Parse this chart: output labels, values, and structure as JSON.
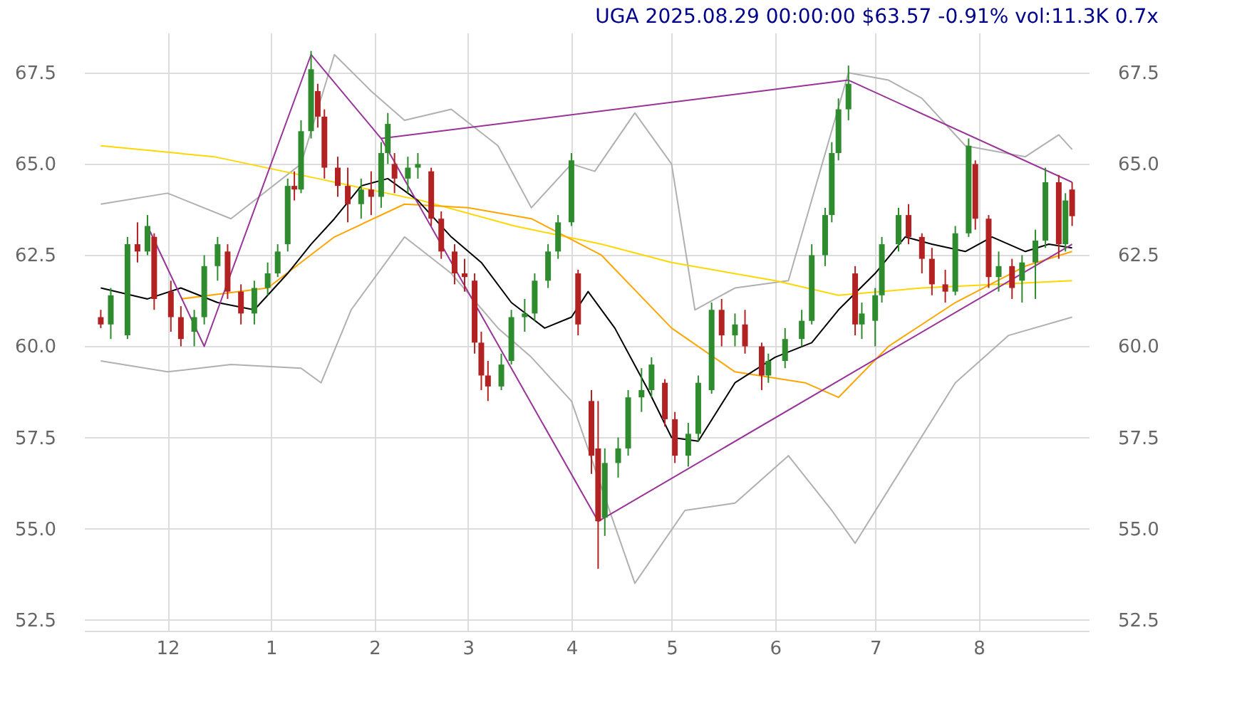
{
  "chart_data": {
    "type": "candlestick",
    "title": "UGA 2025.08.29 00:00:00 $63.57 -0.91% vol:11.3K 0.7x",
    "x": [
      "2024-11-11",
      "2024-11-14",
      "2024-11-19",
      "2024-11-22",
      "2024-11-25",
      "2024-11-27",
      "2024-12-02",
      "2024-12-05",
      "2024-12-09",
      "2024-12-12",
      "2024-12-16",
      "2024-12-19",
      "2024-12-23",
      "2024-12-27",
      "2024-12-31",
      "2025-01-03",
      "2025-01-06",
      "2025-01-08",
      "2025-01-10",
      "2025-01-13",
      "2025-01-15",
      "2025-01-17",
      "2025-01-21",
      "2025-01-24",
      "2025-01-28",
      "2025-01-31",
      "2025-02-03",
      "2025-02-05",
      "2025-02-07",
      "2025-02-11",
      "2025-02-14",
      "2025-02-18",
      "2025-02-21",
      "2025-02-25",
      "2025-02-28",
      "2025-03-03",
      "2025-03-05",
      "2025-03-07",
      "2025-03-11",
      "2025-03-14",
      "2025-03-18",
      "2025-03-21",
      "2025-03-25",
      "2025-03-28",
      "2025-04-01",
      "2025-04-03",
      "2025-04-07",
      "2025-04-09",
      "2025-04-11",
      "2025-04-15",
      "2025-04-18",
      "2025-04-22",
      "2025-04-25",
      "2025-04-29",
      "2025-05-02",
      "2025-05-06",
      "2025-05-09",
      "2025-05-13",
      "2025-05-16",
      "2025-05-20",
      "2025-05-23",
      "2025-05-28",
      "2025-05-30",
      "2025-06-04",
      "2025-06-09",
      "2025-06-12",
      "2025-06-16",
      "2025-06-18",
      "2025-06-20",
      "2025-06-23",
      "2025-06-25",
      "2025-06-27",
      "2025-07-01",
      "2025-07-03",
      "2025-07-08",
      "2025-07-11",
      "2025-07-15",
      "2025-07-18",
      "2025-07-22",
      "2025-07-25",
      "2025-07-29",
      "2025-07-31",
      "2025-08-04",
      "2025-08-07",
      "2025-08-11",
      "2025-08-14",
      "2025-08-18",
      "2025-08-21",
      "2025-08-25",
      "2025-08-27",
      "2025-08-29"
    ],
    "ohlc": [
      [
        60.8,
        61.0,
        60.5,
        60.6
      ],
      [
        60.6,
        61.6,
        60.2,
        61.4
      ],
      [
        60.3,
        63.0,
        60.2,
        62.8
      ],
      [
        62.8,
        63.4,
        62.3,
        62.6
      ],
      [
        62.6,
        63.6,
        62.5,
        63.3
      ],
      [
        63.0,
        63.1,
        61.0,
        61.3
      ],
      [
        61.5,
        61.8,
        60.4,
        60.8
      ],
      [
        60.8,
        61.1,
        60.0,
        60.2
      ],
      [
        60.4,
        61.0,
        60.0,
        60.8
      ],
      [
        60.8,
        62.5,
        60.6,
        62.2
      ],
      [
        62.2,
        63.0,
        61.8,
        62.8
      ],
      [
        62.6,
        62.8,
        61.3,
        61.5
      ],
      [
        61.5,
        61.7,
        60.6,
        60.9
      ],
      [
        60.9,
        61.8,
        60.6,
        61.6
      ],
      [
        61.6,
        62.3,
        61.4,
        62.0
      ],
      [
        62.0,
        62.8,
        61.9,
        62.6
      ],
      [
        62.8,
        64.6,
        62.6,
        64.4
      ],
      [
        64.4,
        64.8,
        64.0,
        64.3
      ],
      [
        64.3,
        66.2,
        64.2,
        65.9
      ],
      [
        65.9,
        68.1,
        65.7,
        67.6
      ],
      [
        67.0,
        67.2,
        66.0,
        66.3
      ],
      [
        66.3,
        66.5,
        64.6,
        64.9
      ],
      [
        64.9,
        65.2,
        64.1,
        64.4
      ],
      [
        64.4,
        64.9,
        63.4,
        63.9
      ],
      [
        63.9,
        64.6,
        63.5,
        64.3
      ],
      [
        64.3,
        64.8,
        63.6,
        64.1
      ],
      [
        64.1,
        65.6,
        63.8,
        65.3
      ],
      [
        65.3,
        66.4,
        65.0,
        66.1
      ],
      [
        65.0,
        65.3,
        64.2,
        64.6
      ],
      [
        64.6,
        65.2,
        64.2,
        64.9
      ],
      [
        64.9,
        65.3,
        64.6,
        65.0
      ],
      [
        64.8,
        64.9,
        63.3,
        63.5
      ],
      [
        63.5,
        63.7,
        62.4,
        62.6
      ],
      [
        62.6,
        62.8,
        61.7,
        62.0
      ],
      [
        62.0,
        62.4,
        61.5,
        61.9
      ],
      [
        61.8,
        62.0,
        59.8,
        60.1
      ],
      [
        60.1,
        60.4,
        58.8,
        59.2
      ],
      [
        59.2,
        59.6,
        58.5,
        58.9
      ],
      [
        58.9,
        59.8,
        58.8,
        59.5
      ],
      [
        59.6,
        61.0,
        59.5,
        60.8
      ],
      [
        60.8,
        61.3,
        60.4,
        60.9
      ],
      [
        60.9,
        62.0,
        60.7,
        61.8
      ],
      [
        61.8,
        62.8,
        61.6,
        62.6
      ],
      [
        62.6,
        63.6,
        62.4,
        63.4
      ],
      [
        63.4,
        65.3,
        63.3,
        65.1
      ],
      [
        62.0,
        62.1,
        60.3,
        60.6
      ],
      [
        58.5,
        58.8,
        56.5,
        57.0
      ],
      [
        57.2,
        58.5,
        53.9,
        55.2
      ],
      [
        55.3,
        57.2,
        54.8,
        56.8
      ],
      [
        56.8,
        57.5,
        56.4,
        57.2
      ],
      [
        57.2,
        58.8,
        57.0,
        58.6
      ],
      [
        58.6,
        59.4,
        58.2,
        58.8
      ],
      [
        58.8,
        59.7,
        58.6,
        59.5
      ],
      [
        59.0,
        59.1,
        57.8,
        58.0
      ],
      [
        58.0,
        58.2,
        56.8,
        57.0
      ],
      [
        57.0,
        57.9,
        56.7,
        57.6
      ],
      [
        57.6,
        59.2,
        57.4,
        59.0
      ],
      [
        58.8,
        61.2,
        58.7,
        61.0
      ],
      [
        61.0,
        61.3,
        60.0,
        60.3
      ],
      [
        60.3,
        60.9,
        60.0,
        60.6
      ],
      [
        60.6,
        61.0,
        59.8,
        60.0
      ],
      [
        60.0,
        60.1,
        58.8,
        59.2
      ],
      [
        59.2,
        59.8,
        59.0,
        59.6
      ],
      [
        59.6,
        60.5,
        59.4,
        60.2
      ],
      [
        60.2,
        61.0,
        60.0,
        60.7
      ],
      [
        60.7,
        62.8,
        60.6,
        62.5
      ],
      [
        62.5,
        63.8,
        62.2,
        63.6
      ],
      [
        63.6,
        65.6,
        63.4,
        65.3
      ],
      [
        65.3,
        66.8,
        65.1,
        66.5
      ],
      [
        66.5,
        67.7,
        66.2,
        67.2
      ],
      [
        62.0,
        62.2,
        60.3,
        60.6
      ],
      [
        60.6,
        61.2,
        60.2,
        60.9
      ],
      [
        60.7,
        61.6,
        60.0,
        61.4
      ],
      [
        61.4,
        63.0,
        61.2,
        62.8
      ],
      [
        62.8,
        63.8,
        62.6,
        63.6
      ],
      [
        63.6,
        63.9,
        62.8,
        63.0
      ],
      [
        63.0,
        63.1,
        62.0,
        62.4
      ],
      [
        62.4,
        62.7,
        61.4,
        61.7
      ],
      [
        61.7,
        62.1,
        61.2,
        61.5
      ],
      [
        61.5,
        63.3,
        61.4,
        63.1
      ],
      [
        63.1,
        65.7,
        63.0,
        65.5
      ],
      [
        65.0,
        65.1,
        63.2,
        63.5
      ],
      [
        63.5,
        63.6,
        61.6,
        61.9
      ],
      [
        61.9,
        62.6,
        61.5,
        62.2
      ],
      [
        62.2,
        62.4,
        61.3,
        61.6
      ],
      [
        61.8,
        62.5,
        61.2,
        62.3
      ],
      [
        62.3,
        63.2,
        61.3,
        62.9
      ],
      [
        62.9,
        64.9,
        62.7,
        64.5
      ],
      [
        64.5,
        64.7,
        62.4,
        62.8
      ],
      [
        62.8,
        64.2,
        62.6,
        64.0
      ],
      [
        64.3,
        64.5,
        63.3,
        63.57
      ]
    ],
    "colors": [
      "#b22222",
      "#2e8b2e",
      "#2e8b2e",
      "#b22222",
      "#2e8b2e",
      "#b22222",
      "#b22222",
      "#b22222",
      "#2e8b2e",
      "#2e8b2e",
      "#2e8b2e",
      "#b22222",
      "#b22222",
      "#2e8b2e",
      "#2e8b2e",
      "#2e8b2e",
      "#2e8b2e",
      "#b22222",
      "#2e8b2e",
      "#2e8b2e",
      "#b22222",
      "#b22222",
      "#b22222",
      "#b22222",
      "#2e8b2e",
      "#b22222",
      "#2e8b2e",
      "#2e8b2e",
      "#b22222",
      "#2e8b2e",
      "#2e8b2e",
      "#b22222",
      "#b22222",
      "#b22222",
      "#b22222",
      "#b22222",
      "#b22222",
      "#b22222",
      "#2e8b2e",
      "#2e8b2e",
      "#2e8b2e",
      "#2e8b2e",
      "#2e8b2e",
      "#2e8b2e",
      "#2e8b2e",
      "#b22222",
      "#b22222",
      "#b22222",
      "#2e8b2e",
      "#2e8b2e",
      "#2e8b2e",
      "#2e8b2e",
      "#2e8b2e",
      "#b22222",
      "#b22222",
      "#2e8b2e",
      "#2e8b2e",
      "#2e8b2e",
      "#b22222",
      "#2e8b2e",
      "#b22222",
      "#b22222",
      "#2e8b2e",
      "#2e8b2e",
      "#2e8b2e",
      "#2e8b2e",
      "#2e8b2e",
      "#2e8b2e",
      "#2e8b2e",
      "#2e8b2e",
      "#b22222",
      "#2e8b2e",
      "#2e8b2e",
      "#2e8b2e",
      "#2e8b2e",
      "#b22222",
      "#b22222",
      "#b22222",
      "#b22222",
      "#2e8b2e",
      "#2e8b2e",
      "#b22222",
      "#b22222",
      "#2e8b2e",
      "#b22222",
      "#2e8b2e",
      "#2e8b2e",
      "#2e8b2e",
      "#b22222",
      "#2e8b2e",
      "#b22222"
    ],
    "series": [
      {
        "type": "line",
        "color": "#b0b0b0",
        "x": [
          "2024-11-11",
          "2024-12-01",
          "2024-12-20",
          "2025-01-10",
          "2025-01-20",
          "2025-01-31",
          "2025-02-10",
          "2025-02-24",
          "2025-03-10",
          "2025-03-20",
          "2025-04-01",
          "2025-04-08",
          "2025-04-20",
          "2025-05-01",
          "2025-05-08",
          "2025-05-20",
          "2025-06-05",
          "2025-06-23",
          "2025-07-05",
          "2025-07-15",
          "2025-07-28",
          "2025-08-15",
          "2025-08-25",
          "2025-08-29"
        ],
        "values": [
          63.9,
          64.2,
          63.5,
          65.0,
          68.0,
          67.0,
          66.2,
          66.5,
          65.5,
          63.8,
          65.0,
          64.8,
          66.4,
          65.0,
          61.0,
          61.6,
          61.8,
          67.5,
          67.3,
          66.8,
          65.5,
          65.2,
          65.8,
          65.4
        ]
      },
      {
        "type": "line",
        "color": "#b0b0b0",
        "x": [
          "2024-11-11",
          "2024-12-01",
          "2024-12-20",
          "2025-01-10",
          "2025-01-16",
          "2025-01-25",
          "2025-02-10",
          "2025-02-24",
          "2025-03-10",
          "2025-03-20",
          "2025-04-01",
          "2025-04-20",
          "2025-05-05",
          "2025-05-20",
          "2025-06-05",
          "2025-06-18",
          "2025-06-25",
          "2025-07-10",
          "2025-07-25",
          "2025-08-10",
          "2025-08-29"
        ],
        "values": [
          59.6,
          59.3,
          59.5,
          59.4,
          59.0,
          61.0,
          63.0,
          62.0,
          60.5,
          59.7,
          58.5,
          53.5,
          55.5,
          55.7,
          57.0,
          55.5,
          54.6,
          56.8,
          59.0,
          60.3,
          60.8
        ]
      },
      {
        "type": "line",
        "color": "#ffd700",
        "x": [
          "2024-11-11",
          "2024-12-15",
          "2025-01-15",
          "2025-02-15",
          "2025-03-15",
          "2025-04-10",
          "2025-05-01",
          "2025-06-01",
          "2025-06-20",
          "2025-07-15",
          "2025-08-29"
        ],
        "values": [
          65.5,
          65.2,
          64.6,
          64.0,
          63.3,
          62.8,
          62.3,
          61.8,
          61.4,
          61.6,
          61.8
        ]
      },
      {
        "type": "line",
        "color": "#ffa500",
        "x": [
          "2024-12-05",
          "2024-12-31",
          "2025-01-20",
          "2025-02-10",
          "2025-03-01",
          "2025-03-20",
          "2025-04-10",
          "2025-05-01",
          "2025-05-20",
          "2025-06-10",
          "2025-06-20",
          "2025-07-05",
          "2025-07-25",
          "2025-08-15",
          "2025-08-29"
        ],
        "values": [
          61.3,
          61.6,
          63.0,
          63.9,
          63.8,
          63.5,
          62.5,
          60.5,
          59.3,
          59.0,
          58.6,
          60.0,
          61.2,
          62.2,
          62.6
        ]
      },
      {
        "type": "line",
        "color": "#000000",
        "x": [
          "2024-11-11",
          "2024-11-25",
          "2024-12-05",
          "2024-12-16",
          "2024-12-27",
          "2025-01-06",
          "2025-01-13",
          "2025-01-20",
          "2025-01-28",
          "2025-02-05",
          "2025-02-14",
          "2025-02-24",
          "2025-03-05",
          "2025-03-14",
          "2025-03-24",
          "2025-04-01",
          "2025-04-06",
          "2025-04-14",
          "2025-04-24",
          "2025-05-01",
          "2025-05-09",
          "2025-05-20",
          "2025-06-01",
          "2025-06-12",
          "2025-06-20",
          "2025-07-01",
          "2025-07-10",
          "2025-07-18",
          "2025-07-28",
          "2025-08-05",
          "2025-08-15",
          "2025-08-22",
          "2025-08-29"
        ],
        "values": [
          61.6,
          61.3,
          61.6,
          61.2,
          61.0,
          62.0,
          62.8,
          63.5,
          64.4,
          64.6,
          64.0,
          63.0,
          62.3,
          61.2,
          60.5,
          60.8,
          61.5,
          60.5,
          58.8,
          57.5,
          57.4,
          59.0,
          59.7,
          60.1,
          61.0,
          62.0,
          63.0,
          62.8,
          62.6,
          63.0,
          62.6,
          62.8,
          62.7
        ]
      },
      {
        "type": "line",
        "color": "#993399",
        "x": [
          "2024-11-25",
          "2024-12-12",
          "2025-01-13",
          "2025-02-03",
          "2025-04-09",
          "2025-08-29"
        ],
        "values": [
          63.3,
          60.0,
          68.0,
          65.7,
          55.2,
          62.8
        ]
      },
      {
        "type": "line",
        "color": "#993399",
        "x": [
          "2025-02-03",
          "2025-06-23",
          "2025-08-29"
        ],
        "values": [
          65.7,
          67.3,
          64.5
        ]
      }
    ],
    "xlim": [
      "2024-11-06",
      "2025-09-03"
    ],
    "xticks": [
      {
        "value": "2024-12-01",
        "label": "12"
      },
      {
        "value": "2025-01-01",
        "label": "1"
      },
      {
        "value": "2025-02-01",
        "label": "2"
      },
      {
        "value": "2025-03-01",
        "label": "3"
      },
      {
        "value": "2025-04-01",
        "label": "4"
      },
      {
        "value": "2025-05-01",
        "label": "5"
      },
      {
        "value": "2025-06-01",
        "label": "6"
      },
      {
        "value": "2025-07-01",
        "label": "7"
      },
      {
        "value": "2025-08-01",
        "label": "8"
      }
    ],
    "ylim": [
      52.2,
      68.6
    ],
    "yticks": [
      52.5,
      {
        "value": 55,
        "label": "55.0"
      },
      57.5,
      {
        "value": 60,
        "label": "60.0"
      },
      62.5,
      {
        "value": 65,
        "label": "65.0"
      },
      67.5
    ],
    "y2lim": [
      52.2,
      68.6
    ],
    "y2ticks": [
      52.5,
      {
        "value": 55,
        "label": "55.0"
      },
      57.5,
      {
        "value": 60,
        "label": "60.0"
      },
      62.5,
      {
        "value": 65,
        "label": "65.0"
      },
      67.5
    ],
    "grid": true,
    "legend": false
  }
}
